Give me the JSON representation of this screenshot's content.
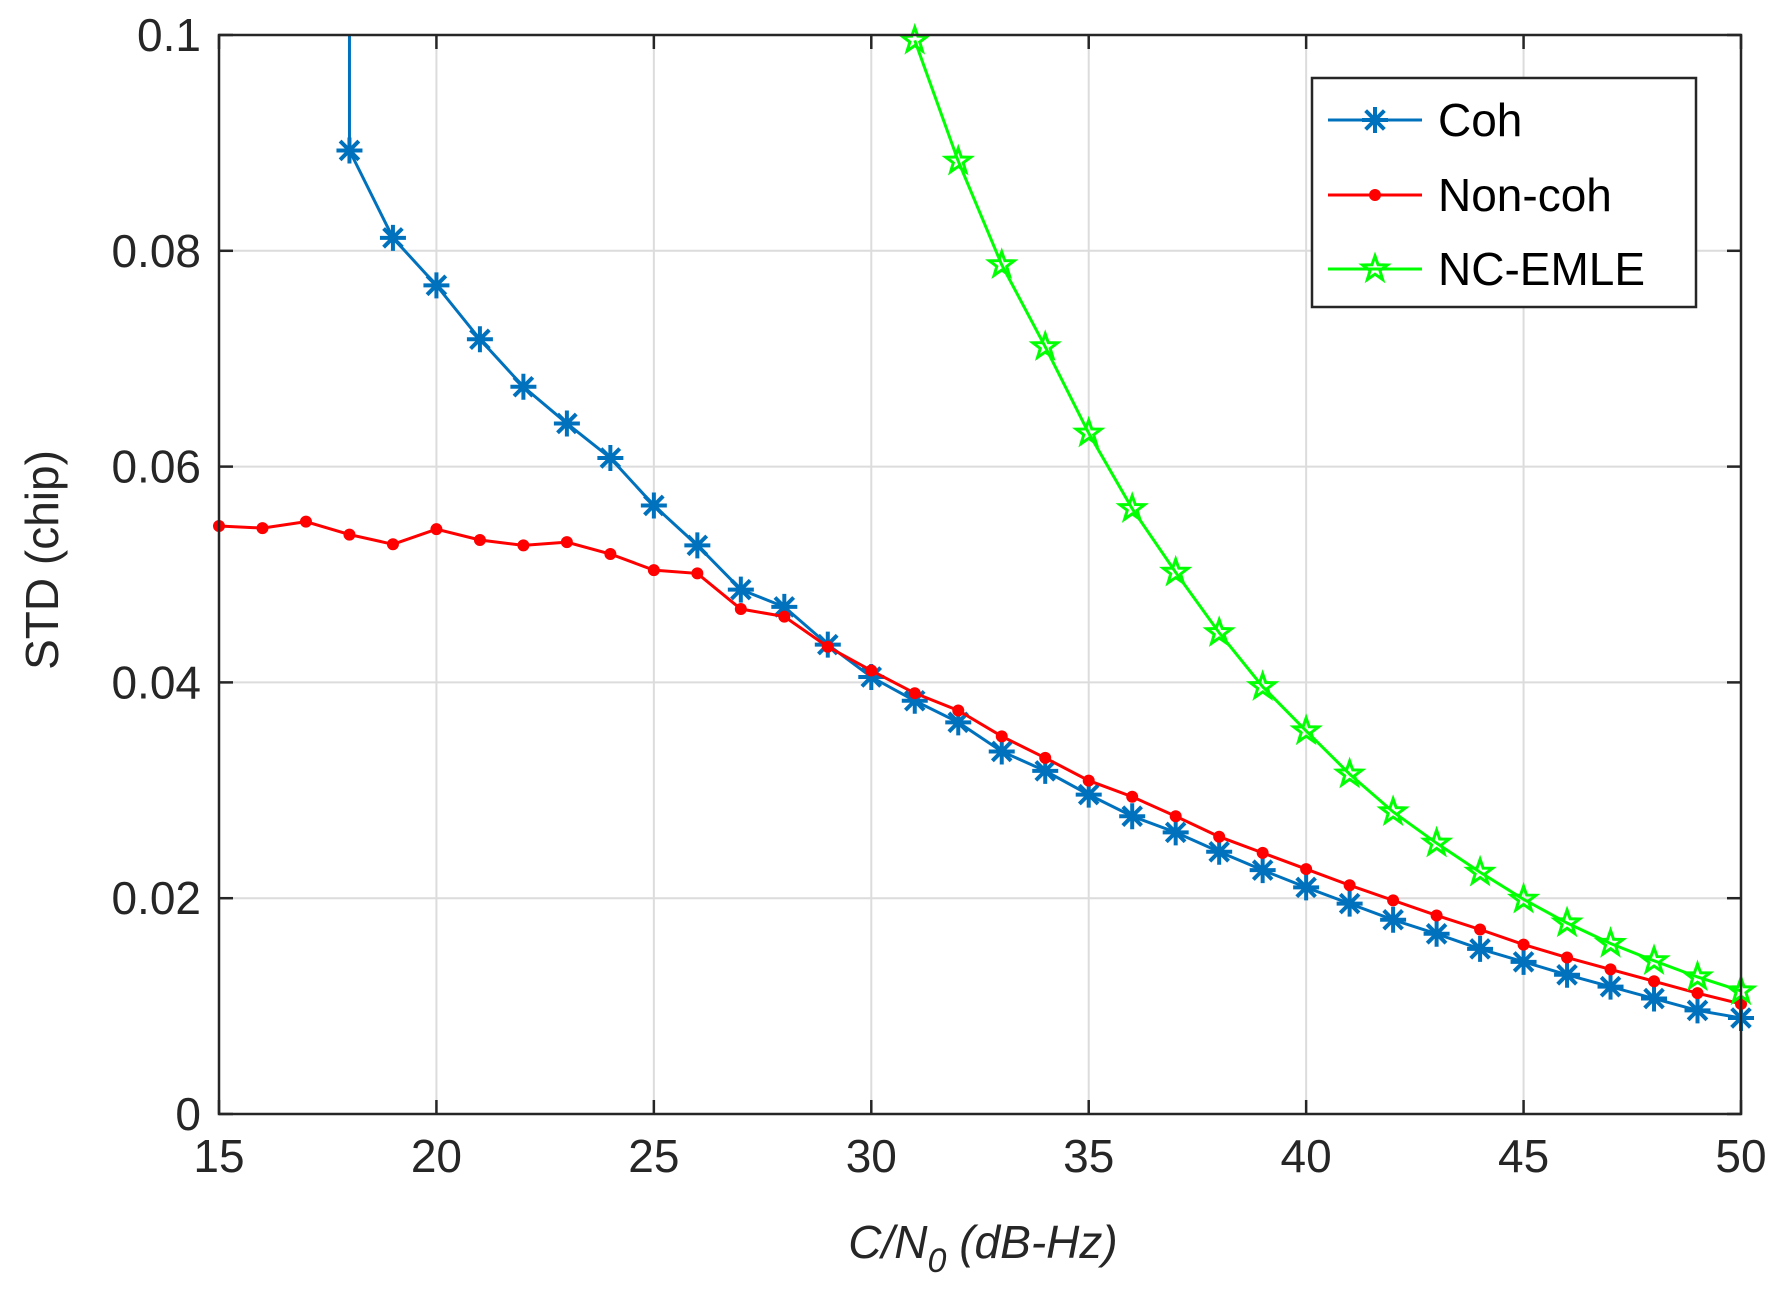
{
  "chart_data": {
    "type": "line",
    "title": "",
    "xlabel_main": "C/N",
    "xlabel_sub": "0",
    "xlabel_units": " (dB-Hz)",
    "ylabel": "STD (chip)",
    "xlim": [
      15,
      50
    ],
    "ylim": [
      0,
      0.1
    ],
    "xticks": [
      15,
      20,
      25,
      30,
      35,
      40,
      45,
      50
    ],
    "yticks": [
      0,
      0.02,
      0.04,
      0.06,
      0.08,
      0.1
    ],
    "xtick_labels": [
      "15",
      "20",
      "25",
      "30",
      "35",
      "40",
      "45",
      "50"
    ],
    "ytick_labels": [
      "0",
      "0.02",
      "0.04",
      "0.06",
      "0.08",
      "0.1"
    ],
    "grid": true,
    "legend_position": "top-right",
    "series": [
      {
        "name": "Coh",
        "color": "#0072BD",
        "marker": "asterisk",
        "x": [
          18,
          18,
          19,
          20,
          21,
          22,
          23,
          24,
          25,
          26,
          27,
          28,
          29,
          30,
          31,
          32,
          33,
          34,
          35,
          36,
          37,
          38,
          39,
          40,
          41,
          42,
          43,
          44,
          45,
          46,
          47,
          48,
          49,
          50
        ],
        "values": [
          0.1,
          0.0893,
          0.0812,
          0.0768,
          0.0718,
          0.0674,
          0.064,
          0.0608,
          0.0564,
          0.0527,
          0.0486,
          0.047,
          0.0435,
          0.0405,
          0.0383,
          0.0363,
          0.0336,
          0.0318,
          0.0296,
          0.0276,
          0.0261,
          0.0243,
          0.0226,
          0.021,
          0.0195,
          0.018,
          0.0167,
          0.0153,
          0.0141,
          0.0129,
          0.0118,
          0.0107,
          0.0096,
          0.0089
        ],
        "marker_from_index": 1
      },
      {
        "name": "Non-coh",
        "color": "#FF0000",
        "marker": "dot",
        "x": [
          15,
          16,
          17,
          18,
          19,
          20,
          21,
          22,
          23,
          24,
          25,
          26,
          27,
          28,
          29,
          30,
          31,
          32,
          33,
          34,
          35,
          36,
          37,
          38,
          39,
          40,
          41,
          42,
          43,
          44,
          45,
          46,
          47,
          48,
          49,
          50
        ],
        "values": [
          0.0545,
          0.0543,
          0.0549,
          0.0537,
          0.0528,
          0.0542,
          0.0532,
          0.0527,
          0.053,
          0.0519,
          0.0504,
          0.0501,
          0.0468,
          0.0461,
          0.0433,
          0.0411,
          0.039,
          0.0374,
          0.035,
          0.033,
          0.0309,
          0.0294,
          0.0276,
          0.0257,
          0.0242,
          0.0227,
          0.0212,
          0.0198,
          0.0184,
          0.0171,
          0.0157,
          0.0145,
          0.0134,
          0.0123,
          0.0112,
          0.0102
        ],
        "marker_from_index": 0
      },
      {
        "name": "NC-EMLE",
        "color": "#00FF00",
        "marker": "pentagram",
        "x": [
          31,
          32,
          33,
          34,
          35,
          36,
          37,
          38,
          39,
          40,
          41,
          42,
          43,
          44,
          45,
          46,
          47,
          48,
          49,
          50
        ],
        "values": [
          0.0995,
          0.0883,
          0.0787,
          0.0711,
          0.0631,
          0.0561,
          0.0502,
          0.0446,
          0.0396,
          0.0355,
          0.0315,
          0.028,
          0.0251,
          0.0224,
          0.0199,
          0.0177,
          0.0158,
          0.0142,
          0.0127,
          0.0114
        ],
        "marker_from_index": 0
      }
    ]
  }
}
